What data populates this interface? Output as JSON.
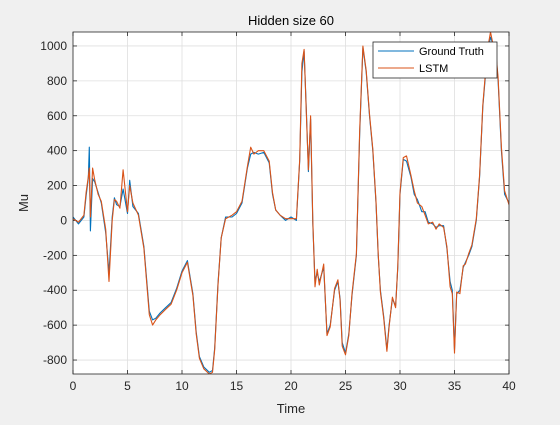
{
  "chart_data": {
    "type": "line",
    "title": "Hidden size 60",
    "xlabel": "Time",
    "ylabel": "Mu",
    "xlim": [
      0,
      40
    ],
    "ylim": [
      -880,
      1080
    ],
    "xticks": [
      0,
      5,
      10,
      15,
      20,
      25,
      30,
      35,
      40
    ],
    "yticks": [
      -800,
      -600,
      -400,
      -200,
      0,
      200,
      400,
      600,
      800,
      1000
    ],
    "grid": true,
    "legend": {
      "location": "top-right"
    },
    "series": [
      {
        "name": "Ground Truth",
        "color": "#0072BD",
        "x": [
          0,
          0.5,
          1,
          1.2,
          1.4,
          1.5,
          1.6,
          1.8,
          2,
          2.3,
          2.6,
          3,
          3.3,
          3.6,
          3.8,
          4,
          4.3,
          4.6,
          5,
          5.2,
          5.5,
          6,
          6.5,
          7,
          7.3,
          7.6,
          8,
          8.5,
          9,
          9.5,
          10,
          10.5,
          11,
          11.3,
          11.6,
          12,
          12.5,
          12.8,
          13,
          13.3,
          13.6,
          14,
          14.3,
          14.6,
          15,
          15.5,
          16,
          16.3,
          16.6,
          17,
          17.5,
          18,
          18.3,
          18.6,
          19,
          19.5,
          20,
          20.5,
          20.8,
          21,
          21.2,
          21.4,
          21.6,
          21.8,
          22,
          22.2,
          22.4,
          22.6,
          23,
          23.3,
          23.6,
          24,
          24.3,
          24.5,
          24.7,
          25,
          25.3,
          25.6,
          26,
          26.3,
          26.6,
          26.9,
          27.2,
          27.5,
          27.8,
          28,
          28.2,
          28.5,
          28.8,
          29,
          29.3,
          29.6,
          29.8,
          30,
          30.3,
          30.6,
          31,
          31.3,
          31.6,
          32,
          32.3,
          32.6,
          33,
          33.3,
          33.6,
          34,
          34.3,
          34.6,
          34.8,
          35,
          35.2,
          35.5,
          35.8,
          36,
          36.3,
          36.6,
          37,
          37.3,
          37.6,
          38,
          38.3,
          38.6,
          38.8,
          39,
          39.3,
          39.6,
          40
        ],
        "y": [
          20,
          -20,
          20,
          140,
          240,
          420,
          -60,
          240,
          220,
          160,
          100,
          -70,
          -300,
          20,
          130,
          90,
          80,
          180,
          40,
          230,
          80,
          40,
          -150,
          -520,
          -570,
          -560,
          -530,
          -500,
          -470,
          -390,
          -290,
          -230,
          -420,
          -640,
          -780,
          -840,
          -870,
          -860,
          -730,
          -360,
          -100,
          20,
          20,
          20,
          40,
          100,
          300,
          380,
          390,
          380,
          390,
          330,
          150,
          60,
          30,
          0,
          20,
          0,
          340,
          850,
          970,
          640,
          280,
          580,
          -20,
          -350,
          -300,
          -350,
          -270,
          -650,
          -600,
          -400,
          -350,
          -450,
          -700,
          -760,
          -650,
          -430,
          -200,
          500,
          990,
          850,
          600,
          400,
          100,
          -200,
          -400,
          -550,
          -740,
          -600,
          -450,
          -490,
          -270,
          150,
          350,
          340,
          250,
          150,
          120,
          50,
          50,
          -10,
          -20,
          -40,
          -30,
          -30,
          -160,
          -350,
          -400,
          -740,
          -420,
          -400,
          -270,
          -240,
          -200,
          -150,
          0,
          250,
          650,
          950,
          1050,
          1000,
          950,
          800,
          400,
          150,
          100
        ]
      },
      {
        "name": "LSTM",
        "color": "#D95319",
        "x": [
          0,
          0.5,
          1,
          1.2,
          1.4,
          1.5,
          1.6,
          1.8,
          2,
          2.3,
          2.6,
          3,
          3.3,
          3.6,
          3.8,
          4,
          4.3,
          4.6,
          5,
          5.2,
          5.5,
          6,
          6.5,
          7,
          7.3,
          7.6,
          8,
          8.5,
          9,
          9.5,
          10,
          10.5,
          11,
          11.3,
          11.6,
          12,
          12.5,
          12.8,
          13,
          13.3,
          13.6,
          14,
          14.3,
          14.6,
          15,
          15.5,
          16,
          16.3,
          16.6,
          17,
          17.5,
          18,
          18.3,
          18.6,
          19,
          19.5,
          20,
          20.5,
          20.8,
          21,
          21.2,
          21.4,
          21.6,
          21.8,
          22,
          22.2,
          22.4,
          22.6,
          23,
          23.3,
          23.6,
          24,
          24.3,
          24.5,
          24.7,
          25,
          25.3,
          25.6,
          26,
          26.3,
          26.6,
          26.9,
          27.2,
          27.5,
          27.8,
          28,
          28.2,
          28.5,
          28.8,
          29,
          29.3,
          29.6,
          29.8,
          30,
          30.3,
          30.6,
          31,
          31.3,
          31.6,
          32,
          32.3,
          32.6,
          33,
          33.3,
          33.6,
          34,
          34.3,
          34.6,
          34.8,
          35,
          35.2,
          35.5,
          35.8,
          36,
          36.3,
          36.6,
          37,
          37.3,
          37.6,
          38,
          38.3,
          38.6,
          38.8,
          39,
          39.3,
          39.6,
          40
        ],
        "y": [
          10,
          -10,
          30,
          160,
          250,
          300,
          20,
          300,
          230,
          150,
          110,
          -50,
          -350,
          0,
          120,
          110,
          70,
          290,
          50,
          200,
          100,
          30,
          -160,
          -540,
          -600,
          -570,
          -540,
          -510,
          -480,
          -400,
          -300,
          -240,
          -430,
          -650,
          -790,
          -850,
          -880,
          -870,
          -740,
          -370,
          -100,
          10,
          20,
          30,
          50,
          110,
          310,
          420,
          380,
          400,
          400,
          340,
          160,
          60,
          30,
          10,
          10,
          10,
          350,
          900,
          980,
          620,
          290,
          600,
          0,
          -380,
          -280,
          -370,
          -250,
          -660,
          -610,
          -390,
          -340,
          -460,
          -720,
          -770,
          -660,
          -420,
          -190,
          520,
          1000,
          860,
          610,
          410,
          110,
          -190,
          -410,
          -560,
          -750,
          -610,
          -440,
          -500,
          -260,
          160,
          360,
          370,
          260,
          170,
          100,
          80,
          30,
          -20,
          -10,
          -50,
          -20,
          -40,
          -150,
          -380,
          -420,
          -760,
          -410,
          -420,
          -260,
          -250,
          -190,
          -140,
          10,
          260,
          660,
          970,
          1080,
          990,
          960,
          820,
          420,
          170,
          90
        ]
      }
    ]
  }
}
